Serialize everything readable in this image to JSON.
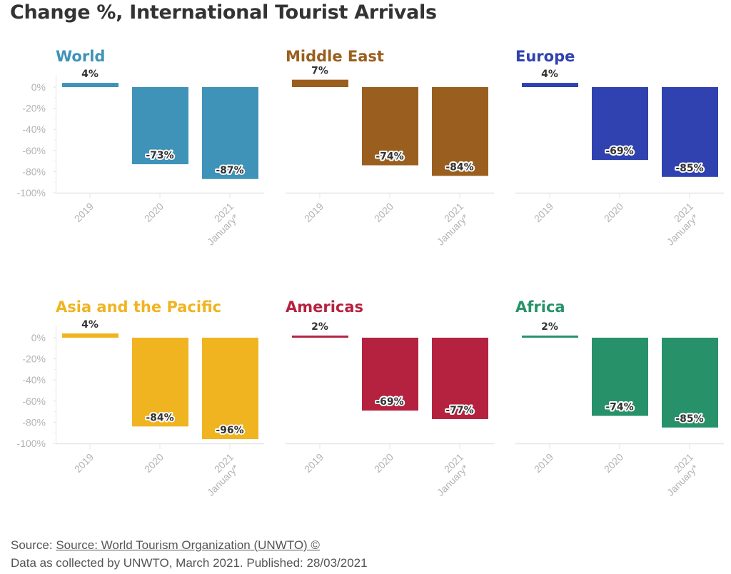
{
  "title": "Change %, International Tourist Arrivals",
  "footer": {
    "source_prefix": "Source:",
    "source_link": "Source: World Tourism Organization (UNWTO) ©",
    "note": "Data as collected by UNWTO, March 2021. Published: 28/03/2021"
  },
  "chart_data": [
    {
      "type": "bar",
      "title": "World",
      "color": "#3f93b8",
      "categories": [
        "2019",
        "2020",
        "2021 January*"
      ],
      "values": [
        4,
        -73,
        -87
      ],
      "ylim": [
        -100,
        10
      ],
      "yticks": [
        "0%",
        "-20%",
        "-40%",
        "-60%",
        "-80%",
        "-100%"
      ]
    },
    {
      "type": "bar",
      "title": "Middle East",
      "color": "#9a5f1f",
      "categories": [
        "2019",
        "2020",
        "2021 January*"
      ],
      "values": [
        7,
        -74,
        -84
      ],
      "ylim": [
        -100,
        10
      ]
    },
    {
      "type": "bar",
      "title": "Europe",
      "color": "#2f42b0",
      "categories": [
        "2019",
        "2020",
        "2021 January*"
      ],
      "values": [
        4,
        -69,
        -85
      ],
      "ylim": [
        -100,
        10
      ]
    },
    {
      "type": "bar",
      "title": "Asia and the Pacific",
      "color": "#f0b420",
      "categories": [
        "2019",
        "2020",
        "2021 January*"
      ],
      "values": [
        4,
        -84,
        -96
      ],
      "ylim": [
        -100,
        10
      ],
      "yticks": [
        "0%",
        "-20%",
        "-40%",
        "-60%",
        "-80%",
        "-100%"
      ]
    },
    {
      "type": "bar",
      "title": "Americas",
      "color": "#b5223f",
      "categories": [
        "2019",
        "2020",
        "2021 January*"
      ],
      "values": [
        2,
        -69,
        -77
      ],
      "ylim": [
        -100,
        10
      ]
    },
    {
      "type": "bar",
      "title": "Africa",
      "color": "#27926a",
      "categories": [
        "2019",
        "2020",
        "2021 January*"
      ],
      "values": [
        2,
        -74,
        -85
      ],
      "ylim": [
        -100,
        10
      ]
    }
  ]
}
